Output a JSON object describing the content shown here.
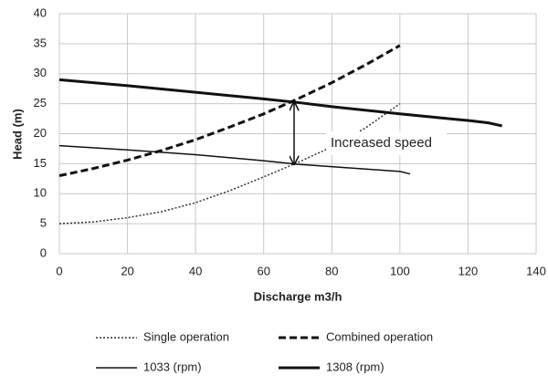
{
  "chart_data": {
    "type": "line",
    "xlabel": "Discharge m3/h",
    "ylabel": "Head (m)",
    "annotation": "Increased speed",
    "xlim": [
      0,
      140
    ],
    "xticks": [
      0,
      20,
      40,
      60,
      80,
      100,
      120,
      140
    ],
    "ylim": [
      0,
      40
    ],
    "yticks": [
      0,
      5,
      10,
      15,
      20,
      25,
      30,
      35,
      40
    ],
    "grid": true,
    "legend": "bottom",
    "series": [
      {
        "name": "Single operation",
        "color": "#333333",
        "line_style": "dotted",
        "line_width": 1.5,
        "x": [
          0,
          10,
          20,
          30,
          40,
          50,
          60,
          70,
          80,
          90,
          100
        ],
        "values": [
          5,
          5.3,
          6,
          7,
          8.5,
          10.5,
          12.8,
          15.2,
          17.8,
          21,
          25
        ]
      },
      {
        "name": "Combined operation",
        "color": "#111111",
        "line_style": "dashed",
        "line_width": 3,
        "x": [
          0,
          10,
          20,
          30,
          40,
          50,
          60,
          70,
          80,
          90,
          100
        ],
        "values": [
          13,
          14.2,
          15.6,
          17.2,
          19,
          21.1,
          23.3,
          25.8,
          28.5,
          31.5,
          34.7
        ]
      },
      {
        "name": "1033 (rpm)",
        "color": "#111111",
        "line_style": "solid",
        "line_width": 1.5,
        "x": [
          0,
          20,
          40,
          60,
          70,
          80,
          100,
          103
        ],
        "values": [
          18,
          17.3,
          16.5,
          15.5,
          14.9,
          14.5,
          13.7,
          13.3
        ]
      },
      {
        "name": "1308 (rpm)",
        "color": "#111111",
        "line_style": "solid",
        "line_width": 3,
        "x": [
          0,
          20,
          40,
          60,
          70,
          80,
          100,
          120,
          126,
          130
        ],
        "values": [
          29,
          28,
          26.9,
          25.8,
          25.2,
          24.5,
          23.3,
          22.2,
          21.8,
          21.3
        ]
      }
    ]
  }
}
